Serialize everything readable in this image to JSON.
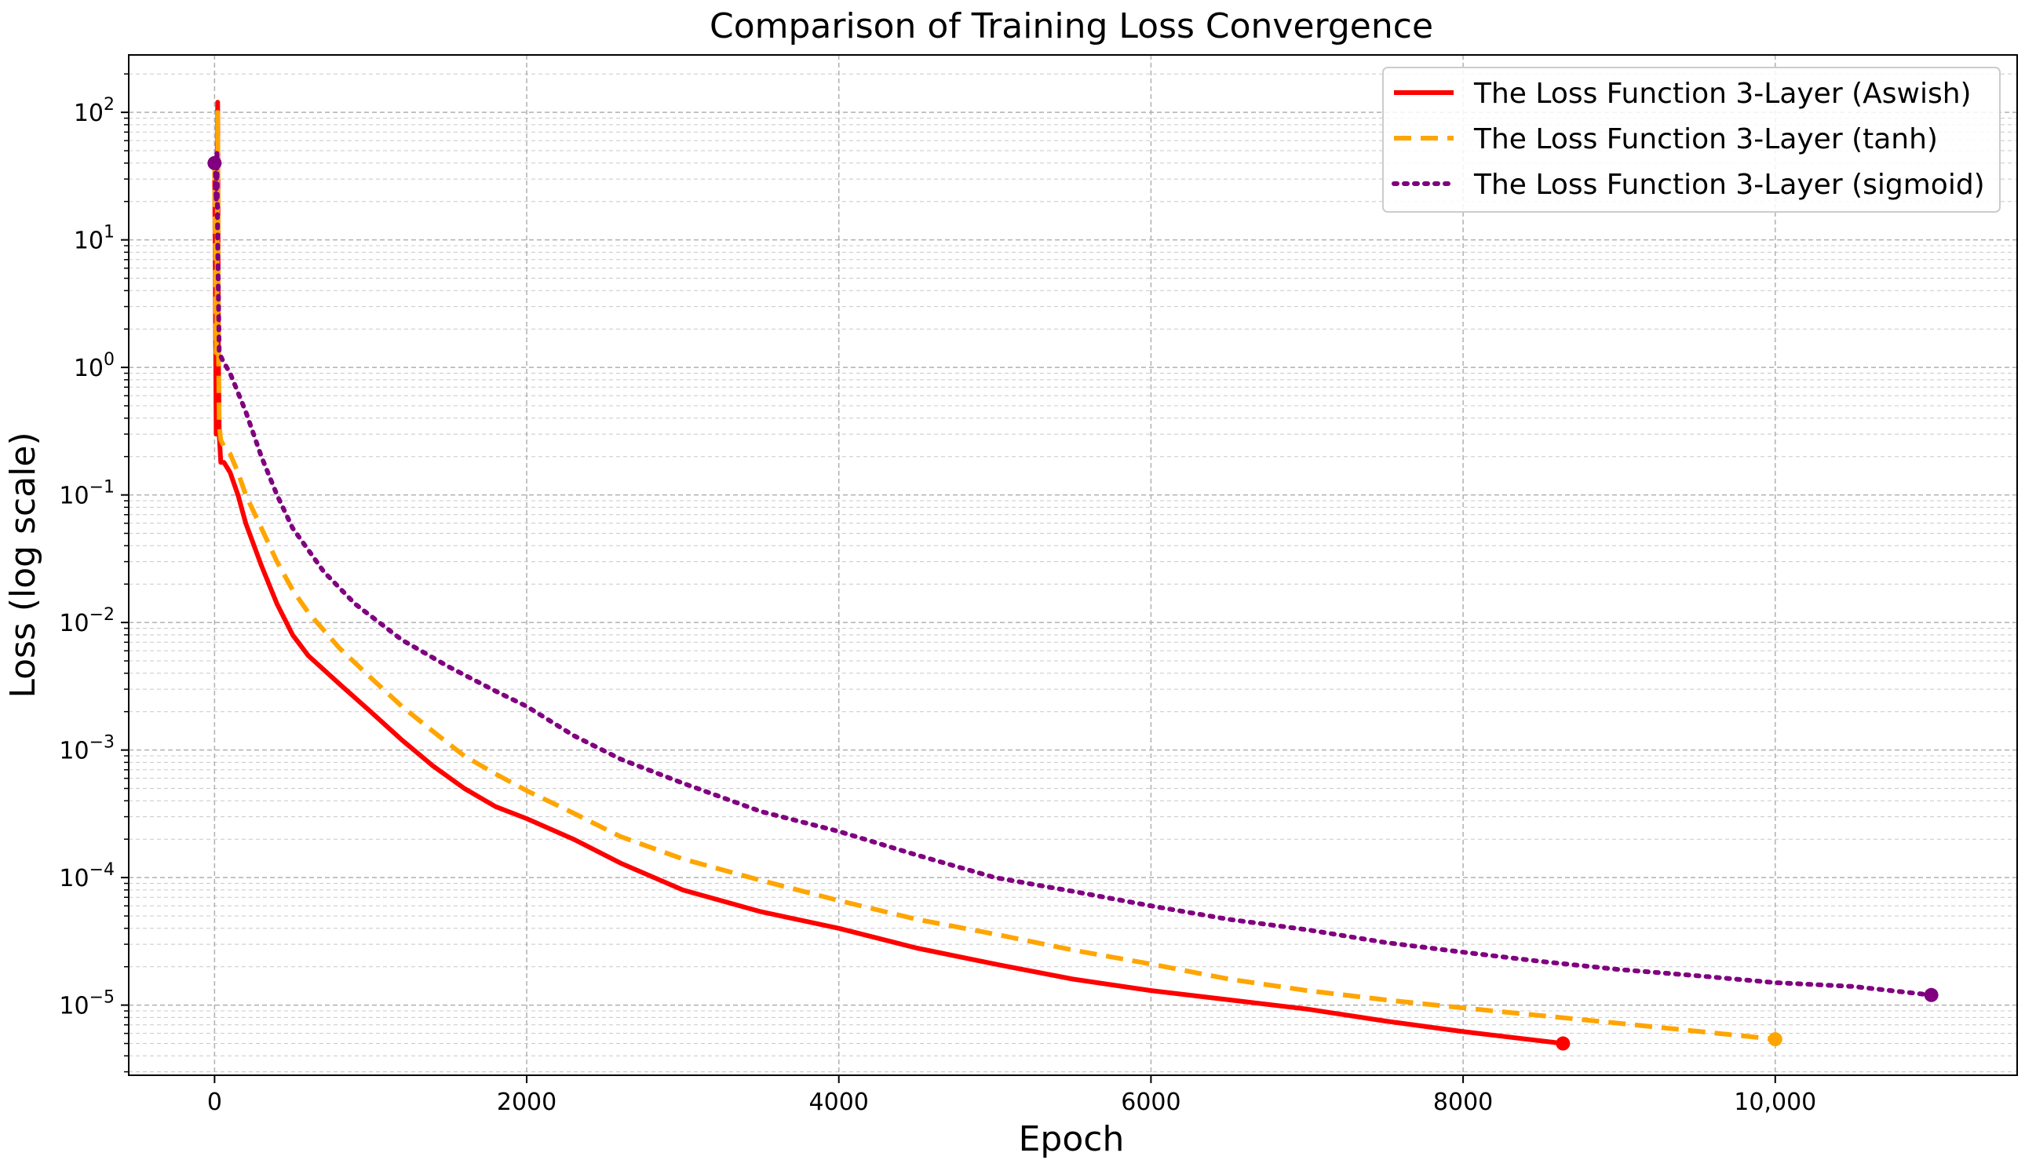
{
  "chart_data": {
    "type": "line",
    "title": "Comparison of Training Loss Convergence",
    "xlabel": "Epoch",
    "ylabel": "Loss (log scale)",
    "yscale": "log",
    "xlim": [
      -550,
      11550
    ],
    "ylim_log10": [
      -5.55,
      2.45
    ],
    "x_ticks": [
      {
        "value": 0,
        "label": "0"
      },
      {
        "value": 2000,
        "label": "2000"
      },
      {
        "value": 4000,
        "label": "4000"
      },
      {
        "value": 6000,
        "label": "6000"
      },
      {
        "value": 8000,
        "label": "8000"
      },
      {
        "value": 10000,
        "label": "10,000"
      }
    ],
    "y_ticks": [
      {
        "exp": 2,
        "label": "10",
        "sup": "2"
      },
      {
        "exp": 1,
        "label": "10",
        "sup": "1"
      },
      {
        "exp": 0,
        "label": "10",
        "sup": "0"
      },
      {
        "exp": -1,
        "label": "10",
        "sup": "−1"
      },
      {
        "exp": -2,
        "label": "10",
        "sup": "−2"
      },
      {
        "exp": -3,
        "label": "10",
        "sup": "−3"
      },
      {
        "exp": -4,
        "label": "10",
        "sup": "−4"
      },
      {
        "exp": -5,
        "label": "10",
        "sup": "−5"
      }
    ],
    "grid": true,
    "legend_position": "top-right",
    "series": [
      {
        "name": "The Loss Function 3-Layer (Aswish)",
        "color": "#ff0000",
        "style": "solid",
        "x": [
          0,
          10,
          12,
          15,
          20,
          25,
          30,
          40,
          60,
          100,
          150,
          200,
          300,
          400,
          500,
          600,
          800,
          1000,
          1200,
          1400,
          1600,
          1800,
          2000,
          2300,
          2600,
          3000,
          3500,
          4000,
          4500,
          5000,
          5500,
          6000,
          6500,
          7000,
          7500,
          8000,
          8640
        ],
        "y": [
          40,
          0.3,
          1.5,
          20,
          120,
          1.2,
          0.3,
          0.18,
          0.18,
          0.15,
          0.1,
          0.06,
          0.028,
          0.014,
          0.008,
          0.0055,
          0.0033,
          0.002,
          0.0012,
          0.00075,
          0.0005,
          0.00036,
          0.00029,
          0.0002,
          0.00013,
          8e-05,
          5.4e-05,
          4e-05,
          2.8e-05,
          2.1e-05,
          1.6e-05,
          1.3e-05,
          1.1e-05,
          9.3e-06,
          7.5e-06,
          6.2e-06,
          5e-06
        ],
        "end_marker": true
      },
      {
        "name": "The Loss Function 3-Layer (tanh)",
        "color": "#ffa500",
        "style": "dashed",
        "x": [
          0,
          10,
          15,
          20,
          25,
          30,
          40,
          60,
          100,
          150,
          200,
          300,
          400,
          500,
          600,
          800,
          1000,
          1200,
          1400,
          1600,
          1800,
          2000,
          2300,
          2600,
          3000,
          3500,
          4000,
          4500,
          5000,
          5500,
          6000,
          6500,
          7000,
          7500,
          8000,
          9000,
          10000
        ],
        "y": [
          40,
          1.3,
          2.0,
          100,
          1.5,
          0.35,
          0.27,
          0.24,
          0.21,
          0.15,
          0.1,
          0.055,
          0.03,
          0.018,
          0.012,
          0.0063,
          0.0037,
          0.0022,
          0.0014,
          0.0009,
          0.00065,
          0.00048,
          0.00032,
          0.00021,
          0.00014,
          9.5e-05,
          6.6e-05,
          4.7e-05,
          3.6e-05,
          2.7e-05,
          2.1e-05,
          1.6e-05,
          1.3e-05,
          1.1e-05,
          9.5e-06,
          7.2e-06,
          5.4e-06
        ],
        "end_marker": true
      },
      {
        "name": "The Loss Function 3-Layer (sigmoid)",
        "color": "#800080",
        "style": "dotted",
        "x": [
          0,
          5,
          10,
          15,
          20,
          30,
          50,
          100,
          200,
          300,
          400,
          500,
          700,
          900,
          1200,
          1500,
          1800,
          2000,
          2300,
          2600,
          3000,
          3500,
          4000,
          4500,
          5000,
          5500,
          6000,
          6500,
          7000,
          7500,
          8000,
          8500,
          9000,
          9500,
          10000,
          10500,
          11000
        ],
        "y": [
          40,
          35,
          20,
          50,
          10,
          1.3,
          1.15,
          0.9,
          0.45,
          0.2,
          0.1,
          0.055,
          0.025,
          0.014,
          0.0073,
          0.0045,
          0.0029,
          0.0022,
          0.0013,
          0.00085,
          0.00055,
          0.00033,
          0.00023,
          0.00015,
          0.0001,
          7.8e-05,
          6e-05,
          4.7e-05,
          3.9e-05,
          3.1e-05,
          2.6e-05,
          2.2e-05,
          1.9e-05,
          1.7e-05,
          1.5e-05,
          1.4e-05,
          1.2e-05
        ],
        "start_marker": true,
        "end_marker": true
      }
    ]
  }
}
